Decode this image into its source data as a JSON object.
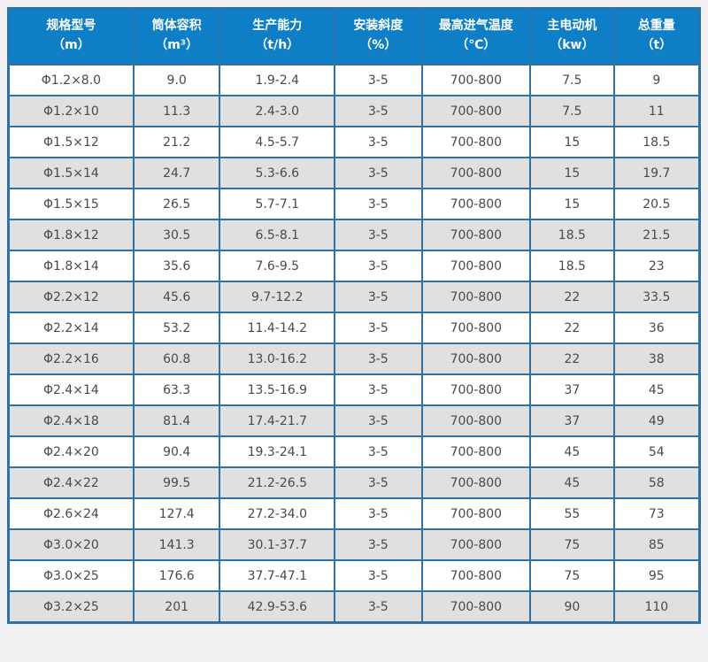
{
  "page": {
    "background_color": "#f1f1f1"
  },
  "table": {
    "header_bg_color": "#0e7fc6",
    "border_color": "#2d72a7",
    "alt_row_color": "#e0e0e0",
    "columns": [
      {
        "title": "规格型号",
        "unit": "（m）"
      },
      {
        "title": "筒体容积",
        "unit": "（m³）"
      },
      {
        "title": "生产能力",
        "unit": "（t/h）"
      },
      {
        "title": "安装斜度",
        "unit": "（%）"
      },
      {
        "title": "最高进气温度",
        "unit": "（℃）"
      },
      {
        "title": "主电动机",
        "unit": "（kw）"
      },
      {
        "title": "总重量",
        "unit": "（t）"
      }
    ],
    "rows": [
      [
        "Φ1.2×8.0",
        "9.0",
        "1.9-2.4",
        "3-5",
        "700-800",
        "7.5",
        "9"
      ],
      [
        "Φ1.2×10",
        "11.3",
        "2.4-3.0",
        "3-5",
        "700-800",
        "7.5",
        "11"
      ],
      [
        "Φ1.5×12",
        "21.2",
        "4.5-5.7",
        "3-5",
        "700-800",
        "15",
        "18.5"
      ],
      [
        "Φ1.5×14",
        "24.7",
        "5.3-6.6",
        "3-5",
        "700-800",
        "15",
        "19.7"
      ],
      [
        "Φ1.5×15",
        "26.5",
        "5.7-7.1",
        "3-5",
        "700-800",
        "15",
        "20.5"
      ],
      [
        "Φ1.8×12",
        "30.5",
        "6.5-8.1",
        "3-5",
        "700-800",
        "18.5",
        "21.5"
      ],
      [
        "Φ1.8×14",
        "35.6",
        "7.6-9.5",
        "3-5",
        "700-800",
        "18.5",
        "23"
      ],
      [
        "Φ2.2×12",
        "45.6",
        "9.7-12.2",
        "3-5",
        "700-800",
        "22",
        "33.5"
      ],
      [
        "Φ2.2×14",
        "53.2",
        "11.4-14.2",
        "3-5",
        "700-800",
        "22",
        "36"
      ],
      [
        "Φ2.2×16",
        "60.8",
        "13.0-16.2",
        "3-5",
        "700-800",
        "22",
        "38"
      ],
      [
        "Φ2.4×14",
        "63.3",
        "13.5-16.9",
        "3-5",
        "700-800",
        "37",
        "45"
      ],
      [
        "Φ2.4×18",
        "81.4",
        "17.4-21.7",
        "3-5",
        "700-800",
        "37",
        "49"
      ],
      [
        "Φ2.4×20",
        "90.4",
        "19.3-24.1",
        "3-5",
        "700-800",
        "45",
        "54"
      ],
      [
        "Φ2.4×22",
        "99.5",
        "21.2-26.5",
        "3-5",
        "700-800",
        "45",
        "58"
      ],
      [
        "Φ2.6×24",
        "127.4",
        "27.2-34.0",
        "3-5",
        "700-800",
        "55",
        "73"
      ],
      [
        "Φ3.0×20",
        "141.3",
        "30.1-37.7",
        "3-5",
        "700-800",
        "75",
        "85"
      ],
      [
        "Φ3.0×25",
        "176.6",
        "37.7-47.1",
        "3-5",
        "700-800",
        "75",
        "95"
      ],
      [
        "Φ3.2×25",
        "201",
        "42.9-53.6",
        "3-5",
        "700-800",
        "90",
        "110"
      ]
    ]
  }
}
